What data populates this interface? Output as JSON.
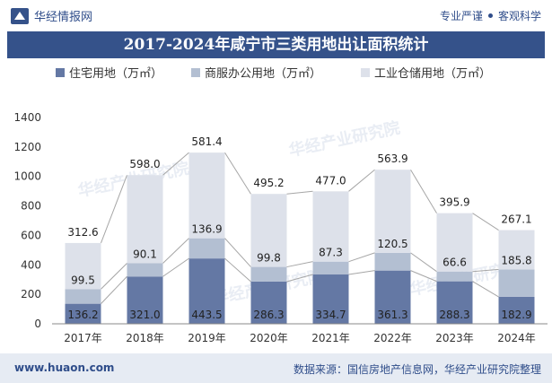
{
  "header": {
    "brand": "华经情报网",
    "tag1": "专业严谨",
    "tag2": "客观科学"
  },
  "title": "2017-2024年咸宁市三类用地出让面积统计",
  "footer": {
    "site": "www.huaon.com",
    "source": "数据来源：国信房地产信息网，华经产业研究院整理"
  },
  "watermark": "华经产业研究院",
  "colors": {
    "title_bg": "#35528a",
    "residential": "#6478a4",
    "commercial": "#b3bfd2",
    "industrial": "#dde1ea",
    "connector": "#a6a6a6",
    "footer_bg": "#e6ebf3"
  },
  "chart_data": {
    "type": "bar",
    "stacked": true,
    "categories": [
      "2017年",
      "2018年",
      "2019年",
      "2020年",
      "2021年",
      "2022年",
      "2023年",
      "2024年"
    ],
    "series": [
      {
        "name": "住宅用地（万㎡）",
        "values": [
          136.2,
          321.0,
          443.5,
          286.3,
          334.7,
          361.3,
          288.3,
          182.9
        ],
        "labels": [
          "136.2",
          "321.0",
          "443.5",
          "286.3",
          "334.7",
          "361.3",
          "288.3",
          "182.9"
        ]
      },
      {
        "name": "商服办公用地（万㎡）",
        "values": [
          99.5,
          90.1,
          136.9,
          99.8,
          87.3,
          120.5,
          66.6,
          185.8
        ],
        "labels": [
          "99.5",
          "90.1",
          "136.9",
          "99.8",
          "87.3",
          "120.5",
          "66.6",
          "185.8"
        ]
      },
      {
        "name": "工业仓储用地（万㎡）",
        "values": [
          312.6,
          598.0,
          581.4,
          495.2,
          477.0,
          563.9,
          395.9,
          267.1
        ],
        "labels": [
          "312.6",
          "598.0",
          "581.4",
          "495.2",
          "477.0",
          "563.9",
          "395.9",
          "267.1"
        ]
      }
    ],
    "ylim": [
      0,
      1400
    ],
    "yticks": [
      "0",
      "200",
      "400",
      "600",
      "800",
      "1000",
      "1200",
      "1400"
    ],
    "legend_position": "top",
    "grid": false
  }
}
